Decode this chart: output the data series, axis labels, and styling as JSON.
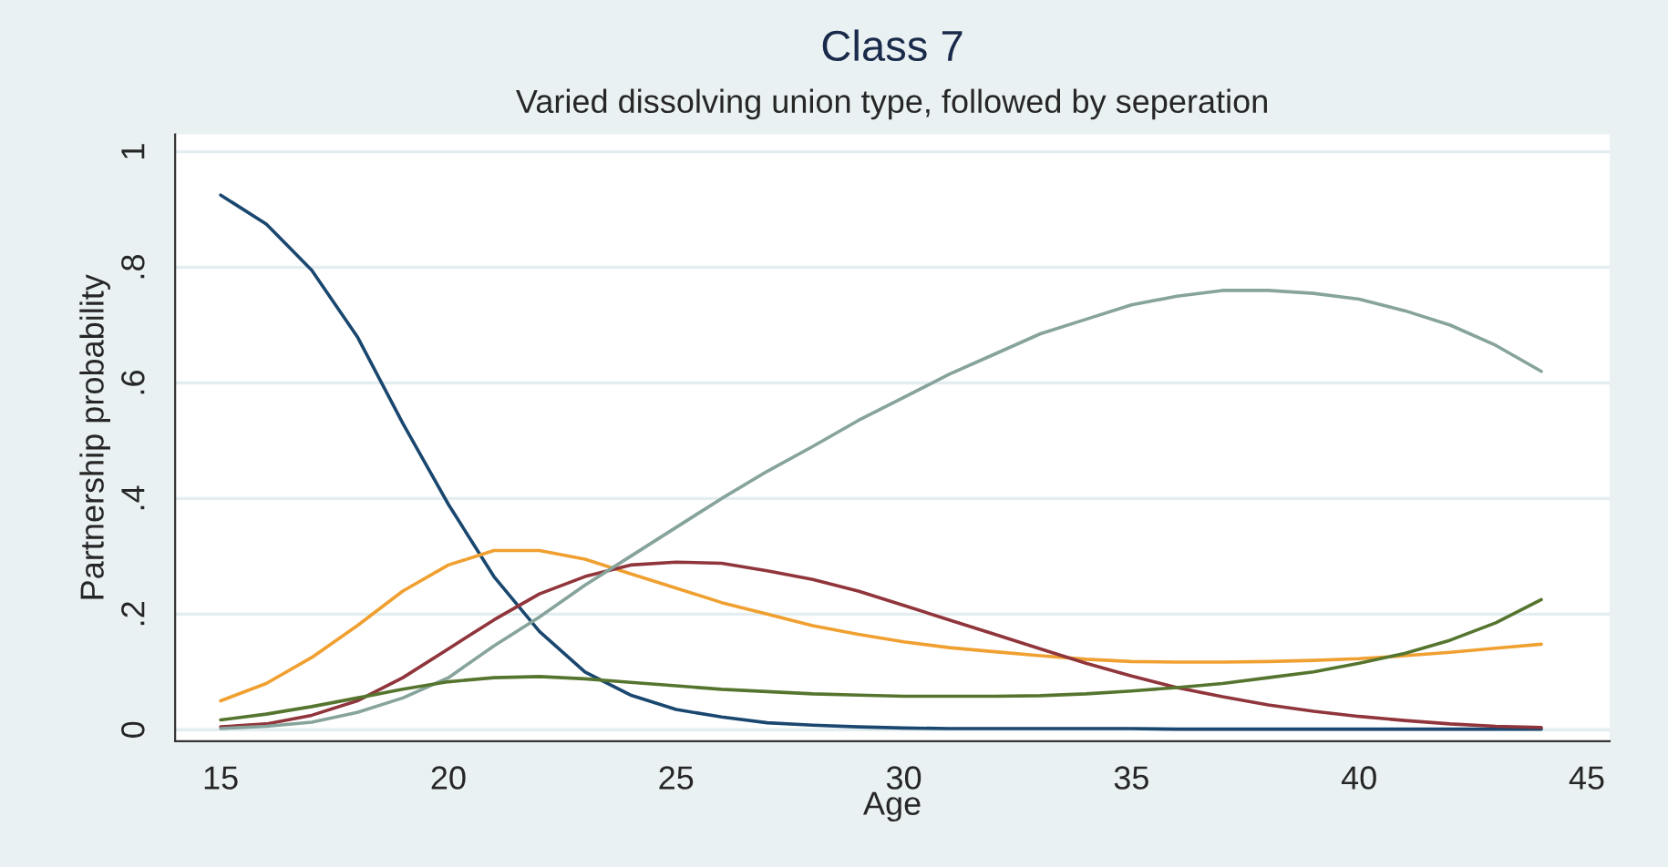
{
  "chart_data": {
    "type": "line",
    "title": "Class 7",
    "subtitle": "Varied dissolving union type, followed by seperation",
    "xlabel": "Age",
    "ylabel": "Partnership probability",
    "x": [
      15,
      16,
      17,
      18,
      19,
      20,
      21,
      22,
      23,
      24,
      25,
      26,
      27,
      28,
      29,
      30,
      31,
      32,
      33,
      34,
      35,
      36,
      37,
      38,
      39,
      40,
      41,
      42,
      43,
      44
    ],
    "series": [
      {
        "color": "#1a476f",
        "values": [
          0.925,
          0.875,
          0.795,
          0.68,
          0.53,
          0.39,
          0.265,
          0.17,
          0.1,
          0.06,
          0.035,
          0.022,
          0.012,
          0.008,
          0.005,
          0.003,
          0.002,
          0.002,
          0.002,
          0.002,
          0.002,
          0.001,
          0.001,
          0.001,
          0.001,
          0.001,
          0.001,
          0.001,
          0.001,
          0.001
        ]
      },
      {
        "color": "#f0a030",
        "values": [
          0.05,
          0.08,
          0.125,
          0.18,
          0.24,
          0.285,
          0.31,
          0.31,
          0.295,
          0.27,
          0.245,
          0.22,
          0.2,
          0.18,
          0.165,
          0.152,
          0.142,
          0.135,
          0.128,
          0.122,
          0.118,
          0.117,
          0.117,
          0.118,
          0.12,
          0.123,
          0.128,
          0.134,
          0.141,
          0.148
        ]
      },
      {
        "color": "#90353b",
        "values": [
          0.005,
          0.01,
          0.025,
          0.05,
          0.09,
          0.14,
          0.19,
          0.235,
          0.265,
          0.285,
          0.29,
          0.288,
          0.275,
          0.26,
          0.24,
          0.215,
          0.19,
          0.165,
          0.14,
          0.115,
          0.093,
          0.073,
          0.057,
          0.043,
          0.032,
          0.023,
          0.016,
          0.01,
          0.006,
          0.004
        ]
      },
      {
        "color": "#86a39c",
        "values": [
          0.002,
          0.006,
          0.013,
          0.03,
          0.055,
          0.09,
          0.145,
          0.195,
          0.25,
          0.3,
          0.35,
          0.4,
          0.447,
          0.49,
          0.535,
          0.575,
          0.615,
          0.65,
          0.685,
          0.71,
          0.735,
          0.75,
          0.76,
          0.76,
          0.755,
          0.745,
          0.725,
          0.7,
          0.665,
          0.62
        ]
      },
      {
        "color": "#55752f",
        "values": [
          0.017,
          0.027,
          0.04,
          0.055,
          0.07,
          0.083,
          0.09,
          0.092,
          0.088,
          0.082,
          0.076,
          0.07,
          0.066,
          0.062,
          0.06,
          0.058,
          0.058,
          0.058,
          0.059,
          0.062,
          0.067,
          0.073,
          0.08,
          0.09,
          0.1,
          0.115,
          0.132,
          0.155,
          0.185,
          0.225
        ]
      }
    ],
    "xlim": [
      14,
      45.5
    ],
    "ylim": [
      -0.02,
      1.03
    ],
    "xticks": [
      15,
      20,
      25,
      30,
      35,
      40,
      45
    ],
    "yticks": [
      0,
      {
        "value": 0.2,
        "label": ".2"
      },
      {
        "value": 0.4,
        "label": ".4"
      },
      {
        "value": 0.6,
        "label": ".6"
      },
      {
        "value": 0.8,
        "label": ".8"
      },
      1
    ],
    "grid": "y",
    "marker": "none",
    "line_style": "solid"
  }
}
